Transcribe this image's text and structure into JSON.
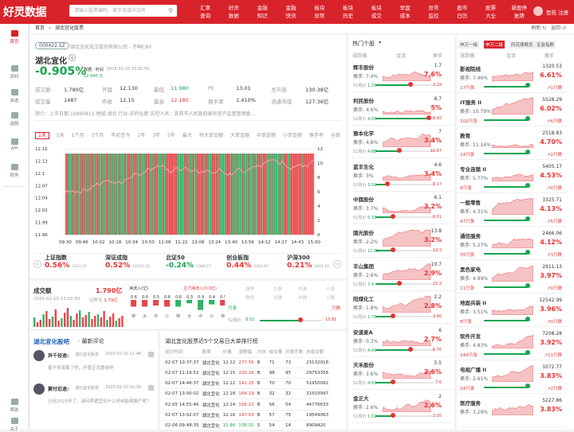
{
  "brand": {
    "logo": "好灵数据",
    "search_placeholder": "请输入股票编码、首字母或中文名"
  },
  "nav": [
    "汇率查询",
    "好灵数据",
    "金融知识",
    "金融快讯",
    "板块异常",
    "板块历史",
    "板块成交",
    "早盘成本",
    "异常监控",
    "股市日历",
    "股票大全",
    "新股停复牌"
  ],
  "user": {
    "login": "登陆 注册"
  },
  "side": [
    "首页",
    "资料",
    "自选",
    "选股",
    "API",
    "财务",
    "帮助",
    "关于"
  ],
  "breadcrumb": {
    "home": "首页",
    "current": "湖北宜化股票",
    "refresh": "刷新",
    "back": "返回"
  },
  "stock": {
    "code": "000422.SZ",
    "company": "湖北宜化化工股份有限公司 - 币种CNY",
    "name": "湖北宜化",
    "change": "-0.905%",
    "time_label": "数据 · 时间",
    "time": "2025-02-10 15:02:50",
    "price": "12.040",
    "unit": "元",
    "rows": [
      [
        "成交额",
        "1.790亿",
        "开盘",
        "12.130",
        "最低",
        "11.980",
        "PE",
        "13.01",
        "总市值",
        "130.38亿"
      ],
      [
        "成交量",
        "1487",
        "昨收",
        "12.15",
        "最高",
        "12.180",
        "换手率",
        "1.410%",
        "流通市值",
        "127.36亿"
      ]
    ],
    "intro": "简介：上市日期:19960815 地域:湖北 行业:农药化肥 实控人名：宜昌市人民政府国有资产监督管理委…"
  },
  "ktabs": [
    "1天",
    "5天",
    "1个月",
    "3个月",
    "年初至今",
    "1年",
    "3年",
    "5年",
    "最大",
    "特大单金额",
    "大单金额",
    "中单金额",
    "小单金额",
    "换手率",
    "全部"
  ],
  "chart_data": {
    "type": "bar",
    "title": "",
    "left_ticks": [
      "12.15",
      "12.12",
      "12.1",
      "12.07",
      "12.04",
      "12.02",
      "11.99",
      "11.96"
    ],
    "right_ticks": [
      "12",
      "10",
      "8",
      "6",
      "4",
      "2",
      "0"
    ],
    "x": [
      "09:30",
      "09:46",
      "10:02",
      "10:18",
      "10:34",
      "10:50",
      "11:06",
      "11:22",
      "13:08",
      "13:24",
      "13:40",
      "13:56",
      "14:12",
      "14:27",
      "14:43",
      "15:00"
    ]
  },
  "indices": [
    {
      "name": "上证指数",
      "val": "0.56%",
      "sub": "3321.37"
    },
    {
      "name": "深证成指",
      "val": "0.52%",
      "sub": "10531.23"
    },
    {
      "name": "北证50",
      "val": "-0.24%",
      "sub": "1364.07"
    },
    {
      "name": "创业板指",
      "val": "0.44%",
      "sub": "2264.87"
    },
    {
      "name": "沪深300",
      "val": "0.21%",
      "sub": "3915.12"
    }
  ],
  "vol": {
    "title": "成交额",
    "amount": "1.790亿",
    "date": "2025-02-10 15:02:50",
    "ratio_label": "比昨天",
    "ratio": "1.79亿",
    "inflow_title": "净流入(亿)",
    "flow_title": "主力净流入(0.0亿)",
    "flows": [
      "0.6",
      "0.6",
      "0.5",
      "0.6",
      "0.6",
      "0.3",
      "0.9",
      "0.4",
      "0.5",
      "1.0",
      "0.4",
      "0.5"
    ],
    "labels": [
      "特",
      "大",
      "中",
      "小",
      "特",
      "大",
      "中",
      "小",
      "特",
      "大",
      "中",
      "小"
    ],
    "side_labels": [
      "涨停",
      "大涨",
      "中涨",
      "小涨",
      "跌停",
      "大跌",
      "中跌",
      "小跌"
    ],
    "only_up": "只涨",
    "only_down": "只跌",
    "weeks_label": "52周价",
    "low": "8.51",
    "high": "15.81"
  },
  "comments": {
    "title": "湖北宜化股吧",
    "sub": " · 最新评论",
    "items": [
      {
        "user": "异千径退:",
        "stock": "湖北宜化股票",
        "time": "2025-02-10 11:48",
        "text": "羞不多亮额了吧，开盘正式重组吧"
      },
      {
        "user": "窦付忍退:",
        "stock": "湖北宜化股票",
        "time": "2025-02-10 11:30",
        "text": "已经2025年了，请问养猪宜化什么时候能够股产呢？"
      }
    ]
  },
  "bigtrades": {
    "title": "湖北宜化股票近5个交易日大单排行榜",
    "headers": [
      "成交时间",
      "股票",
      "价格",
      "涨跌幅",
      "方向",
      "成交量",
      "总换手数",
      "总成交额"
    ],
    "rows": [
      [
        "02-07 10:37:37",
        "湖北宜化",
        "12.12",
        "277.55",
        "B",
        "71",
        "73",
        "23132918"
      ],
      [
        "02-07 11:19:52",
        "湖北宜化",
        "12.15",
        "220.16",
        "B",
        "98",
        "95",
        "29753356"
      ],
      [
        "02-07 14:46:37",
        "湖北宜化",
        "12.12",
        "141.25",
        "B",
        "70",
        "70",
        "51950082"
      ],
      [
        "02-07 13:00:02",
        "湖北宜化",
        "12.18",
        "164.19",
        "B",
        "32",
        "32",
        "31503997"
      ],
      [
        "02-05 14:55:46",
        "湖北宜化",
        "12.14",
        "156.22",
        "B",
        "56",
        "54",
        "44776633"
      ],
      [
        "02-07 13:02:07",
        "湖北宜化",
        "12.16",
        "147.03",
        "B",
        "57",
        "75",
        "19549063"
      ],
      [
        "02-06 09:48:35",
        "湖北宜化",
        "11.86",
        "138.01",
        "S",
        "54",
        "14",
        "9909420"
      ]
    ]
  },
  "hot": {
    "title": "热门个股",
    "h1": "涨跌幅",
    "h2": "金流",
    "h3": "换手",
    "wk": "52周价",
    "items": [
      {
        "name": "辉丰股份",
        "hs": "换手: 7.4%",
        "r1": "1.7",
        "r2": "7.6%",
        "lo": "1.33",
        "hi": "3.29",
        "p": 0.6
      },
      {
        "name": "利民股份",
        "hs": "换手: 4.6%",
        "r1": "8.7",
        "r2": "5%",
        "lo": "4.05",
        "hi": "8.93",
        "p": 0.9
      },
      {
        "name": "雅本化学",
        "hs": "换手: 4.8%",
        "r1": "7",
        "r2": "3.4%",
        "lo": "4.86",
        "hi": "10.67",
        "p": 0.4
      },
      {
        "name": "蓝丰生化",
        "hs": "换手: 3%",
        "r1": "4.6",
        "r2": "3.4%",
        "lo": "3.02",
        "hi": "9.17",
        "p": 0.2
      },
      {
        "name": "中旗股份",
        "hs": "换手: 3.7%",
        "r1": "6.1",
        "r2": "3.2%",
        "lo": "5.33",
        "hi": "8.61",
        "p": 0.3
      },
      {
        "name": "国光股份",
        "hs": "换手: 2.2%",
        "r1": "13.8",
        "r2": "3.2%",
        "lo": "11.05",
        "hi": "19.3",
        "p": 0.3
      },
      {
        "name": "丰山集团",
        "hs": "换手: 2.6%",
        "r1": "10.7",
        "r2": "2.9%",
        "lo": "7.4",
        "hi": "15.3",
        "p": 0.4
      },
      {
        "name": "阳煤化工",
        "hs": "换手: 1.8%",
        "r1": "2.2",
        "r2": "2.8%",
        "lo": "1.75",
        "hi": "3.46",
        "p": 0.3
      },
      {
        "name": "安道麦A",
        "hs": "换手: 0.3%",
        "r1": "6",
        "r2": "2.7%",
        "lo": "4.69",
        "hi": "6.76",
        "p": 0.6
      },
      {
        "name": "天禾股份",
        "hs": "换手: 3.6%",
        "r1": "5.5",
        "r2": "2.6%",
        "lo": "4.83",
        "hi": "7.6",
        "p": 0.3
      },
      {
        "name": "金正大",
        "hs": "换手: 2.6%",
        "r1": "2",
        "r2": "2.6%",
        "lo": "1.52",
        "hi": "3.05",
        "p": 0.3
      }
    ]
  },
  "sectors": {
    "tabs": [
      "申万一级",
      "申万二级",
      "同花顺概念",
      "证监指数"
    ],
    "h1": "涨跌幅",
    "h2": "金流",
    "h3": "换手",
    "items": [
      {
        "name": "影视院线",
        "hs": "换手: 7.46%",
        "r1": "1320.53",
        "r2": "6.61%",
        "bot": "17只涨",
        "end": "↗1只跌"
      },
      {
        "name": "IT服务 II",
        "hs": "换手: 10.79%",
        "r1": "5528.29",
        "r2": "6.02%",
        "bot": "102只涨",
        "end": "↗6只跌"
      },
      {
        "name": "教育",
        "hs": "换手: 11.14%",
        "r1": "2518.83",
        "r2": "4.70%",
        "bot": "14只涨",
        "end": "↗2只跌"
      },
      {
        "name": "专业连锁 II",
        "hs": "换手: 5.77%",
        "r1": "5405.17",
        "r2": "4.53%",
        "bot": "8只涨",
        "end": "↗0只跌"
      },
      {
        "name": "一般零售",
        "hs": "换手: 4.31%",
        "r1": "3325.71",
        "r2": "4.13%",
        "bot": "47只涨",
        "end": "↗5只跌"
      },
      {
        "name": "通信服务",
        "hs": "换手: 5.27%",
        "r1": "2466.06",
        "r2": "4.12%",
        "bot": "35只涨",
        "end": "↗3只跌"
      },
      {
        "name": "黑色家电",
        "hs": "换手: 4.99%",
        "r1": "2911.13",
        "r2": "3.97%",
        "bot": "11只涨",
        "end": "↗0只跌"
      },
      {
        "name": "地面兵装 II",
        "hs": "换手: 3.51%",
        "r1": "12542.99",
        "r2": "3.96%",
        "bot": "8只涨",
        "end": "↗0只跌"
      },
      {
        "name": "软件开发",
        "hs": "换手: 4.83%",
        "r1": "7208.28",
        "r2": "3.92%",
        "bot": "144只涨",
        "end": "↗11只跌"
      },
      {
        "name": "电视广播 II",
        "hs": "换手: 2.61%",
        "r1": "1072.77",
        "r2": "3.83%",
        "bot": "24只涨",
        "end": "↗2只跌"
      },
      {
        "name": "医疗服务",
        "hs": "换手: 3.29%",
        "r1": "5227.86",
        "r2": "3.83%",
        "bot": "",
        "end": ""
      }
    ]
  }
}
